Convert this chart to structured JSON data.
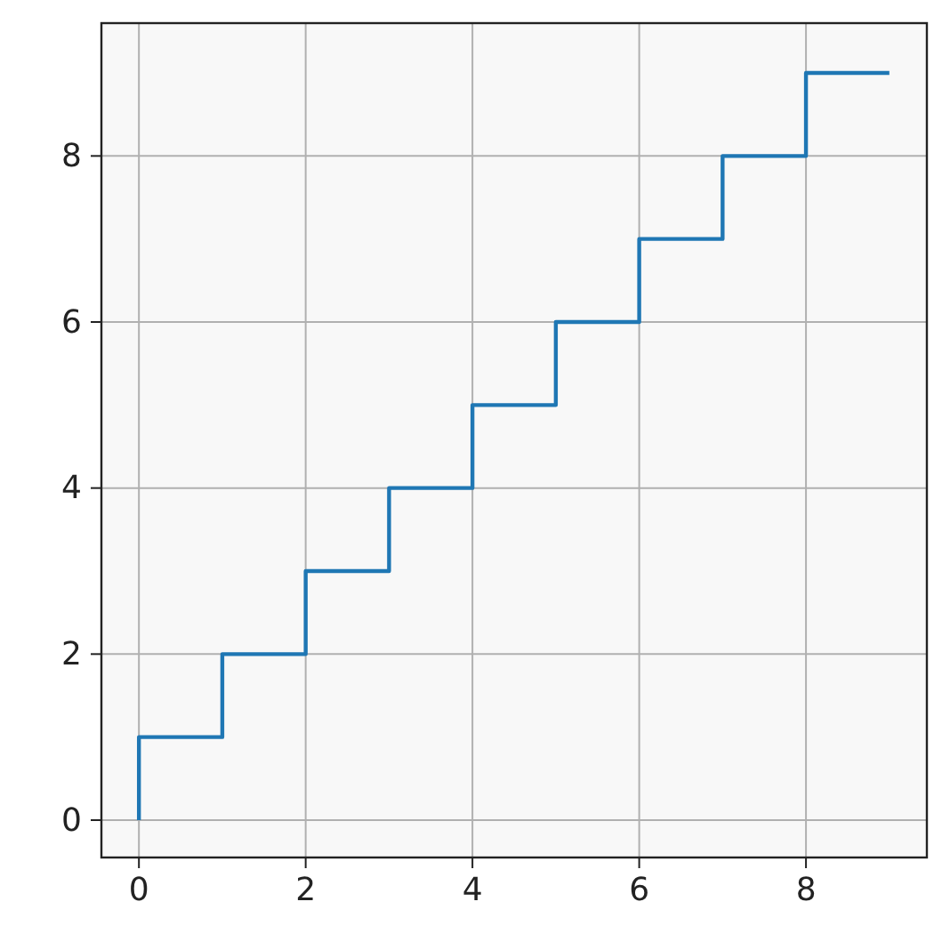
{
  "chart_data": {
    "type": "step",
    "x": [
      0,
      1,
      2,
      3,
      4,
      5,
      6,
      7,
      8,
      9
    ],
    "values": [
      0,
      1,
      2,
      3,
      4,
      5,
      6,
      7,
      8,
      9
    ],
    "color": "#1f77b4",
    "xlim": [
      -0.45,
      9.45
    ],
    "ylim": [
      -0.45,
      9.6
    ],
    "xticks": [
      0,
      2,
      4,
      6,
      8
    ],
    "yticks": [
      0,
      2,
      4,
      6,
      8
    ],
    "grid": true
  }
}
